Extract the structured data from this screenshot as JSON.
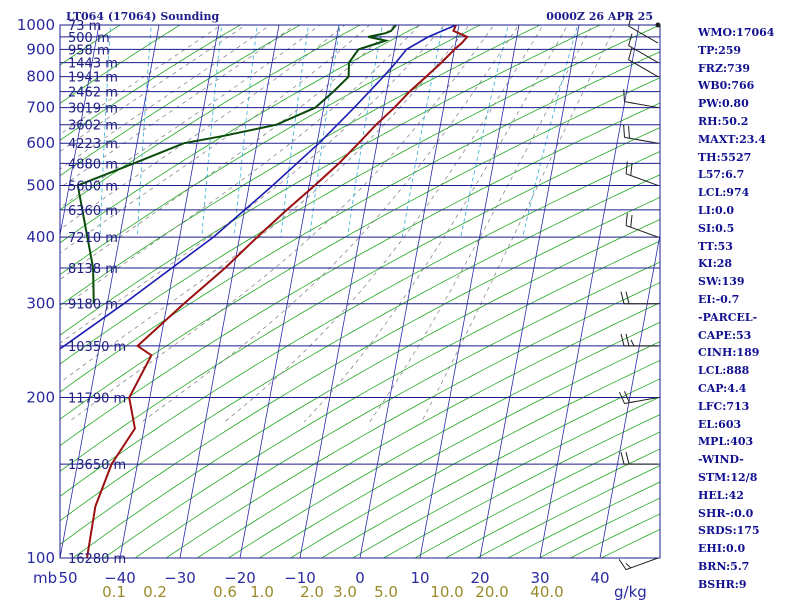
{
  "chart_data": {
    "type": "line",
    "title": "LT064 (17064) Sounding",
    "datetime": "0000Z 26 APR 25",
    "x_unit_label": "mb",
    "mixing_unit_label": "g/kg",
    "xlim": [
      -50,
      50
    ],
    "ylim": [
      1000,
      100
    ],
    "pressure_ticks": [
      {
        "p": 100,
        "label": "100"
      },
      {
        "p": 200,
        "label": "200"
      },
      {
        "p": 300,
        "label": "300"
      },
      {
        "p": 400,
        "label": "400"
      },
      {
        "p": 500,
        "label": "500"
      },
      {
        "p": 600,
        "label": "600"
      },
      {
        "p": 700,
        "label": "700"
      },
      {
        "p": 800,
        "label": "800"
      },
      {
        "p": 900,
        "label": "900"
      },
      {
        "p": 1000,
        "label": "1000"
      }
    ],
    "height_levels": [
      {
        "p": 100,
        "label": "16280 m"
      },
      {
        "p": 150,
        "label": "13650 m"
      },
      {
        "p": 200,
        "label": "11790 m"
      },
      {
        "p": 250,
        "label": "10350 m"
      },
      {
        "p": 300,
        "label": "9180 m"
      },
      {
        "p": 350,
        "label": "8138 m"
      },
      {
        "p": 400,
        "label": "7210 m"
      },
      {
        "p": 450,
        "label": "6360 m"
      },
      {
        "p": 500,
        "label": "5600 m"
      },
      {
        "p": 550,
        "label": "4880 m"
      },
      {
        "p": 600,
        "label": "4223 m"
      },
      {
        "p": 650,
        "label": "3602 m"
      },
      {
        "p": 700,
        "label": "3019 m"
      },
      {
        "p": 750,
        "label": "2462 m"
      },
      {
        "p": 800,
        "label": "1941 m"
      },
      {
        "p": 850,
        "label": "1443 m"
      },
      {
        "p": 900,
        "label": "958 m"
      },
      {
        "p": 950,
        "label": "500 m"
      },
      {
        "p": 1000,
        "label": "73 m"
      }
    ],
    "temperature_ticks": [
      {
        "t": -40,
        "label": "−40"
      },
      {
        "t": -30,
        "label": "−30"
      },
      {
        "t": -20,
        "label": "−20"
      },
      {
        "t": -10,
        "label": "−10"
      },
      {
        "t": 0,
        "label": "0"
      },
      {
        "t": 10,
        "label": "10"
      },
      {
        "t": 20,
        "label": "20"
      },
      {
        "t": 30,
        "label": "30"
      },
      {
        "t": 40,
        "label": "40"
      }
    ],
    "first_temp_label": "50",
    "mixing_ratio_ticks": [
      {
        "w": 0.1,
        "label": "0.1"
      },
      {
        "w": 0.2,
        "label": "0.2"
      },
      {
        "w": 0.6,
        "label": "0.6"
      },
      {
        "w": 1.0,
        "label": "1.0"
      },
      {
        "w": 2.0,
        "label": "2.0"
      },
      {
        "w": 3.0,
        "label": "3.0"
      },
      {
        "w": 5.0,
        "label": "5.0"
      },
      {
        "w": 10.0,
        "label": "10.0"
      },
      {
        "w": 20.0,
        "label": "20.0"
      },
      {
        "w": 40.0,
        "label": "40.0"
      }
    ],
    "temperature": [
      {
        "p": 1000,
        "t": 16.0
      },
      {
        "p": 975,
        "t": 15.4
      },
      {
        "p": 950,
        "t": 17.5
      },
      {
        "p": 925,
        "t": 16.4
      },
      {
        "p": 900,
        "t": 15.0
      },
      {
        "p": 850,
        "t": 12.4
      },
      {
        "p": 800,
        "t": 9.4
      },
      {
        "p": 750,
        "t": 6.2
      },
      {
        "p": 700,
        "t": 3.2
      },
      {
        "p": 650,
        "t": -0.4
      },
      {
        "p": 600,
        "t": -3.9
      },
      {
        "p": 550,
        "t": -7.8
      },
      {
        "p": 500,
        "t": -12.5
      },
      {
        "p": 450,
        "t": -17.9
      },
      {
        "p": 400,
        "t": -23.7
      },
      {
        "p": 350,
        "t": -30.0
      },
      {
        "p": 300,
        "t": -38.0
      },
      {
        "p": 250,
        "t": -47.0
      },
      {
        "p": 240,
        "t": -45.0
      },
      {
        "p": 200,
        "t": -50.0
      },
      {
        "p": 175,
        "t": -50.0
      },
      {
        "p": 150,
        "t": -55.0
      },
      {
        "p": 125,
        "t": -59.0
      },
      {
        "p": 100,
        "t": -62.0
      }
    ],
    "dewpoint": [
      {
        "p": 1000,
        "t": 6.0
      },
      {
        "p": 975,
        "t": 5.0
      },
      {
        "p": 965,
        "t": 4.0
      },
      {
        "p": 950,
        "t": 1.0
      },
      {
        "p": 935,
        "t": 3.8
      },
      {
        "p": 925,
        "t": 2.5
      },
      {
        "p": 900,
        "t": -1.0
      },
      {
        "p": 850,
        "t": -3.0
      },
      {
        "p": 800,
        "t": -3.5
      },
      {
        "p": 750,
        "t": -6.5
      },
      {
        "p": 700,
        "t": -10.0
      },
      {
        "p": 650,
        "t": -17.0
      },
      {
        "p": 620,
        "t": -26.0
      },
      {
        "p": 600,
        "t": -33.0
      },
      {
        "p": 550,
        "t": -42.0
      },
      {
        "p": 500,
        "t": -52.0
      },
      {
        "p": 450,
        "t": -52.0
      },
      {
        "p": 400,
        "t": -52.0
      },
      {
        "p": 350,
        "t": -52.0
      },
      {
        "p": 300,
        "t": -53.0
      }
    ],
    "parcel": [
      {
        "p": 1000,
        "t": 16.0
      },
      {
        "p": 950,
        "t": 11.0
      },
      {
        "p": 900,
        "t": 7.0
      },
      {
        "p": 850,
        "t": 4.8
      },
      {
        "p": 800,
        "t": 2.3
      },
      {
        "p": 700,
        "t": -3.5
      },
      {
        "p": 600,
        "t": -10.5
      },
      {
        "p": 500,
        "t": -19.5
      },
      {
        "p": 400,
        "t": -31.0
      },
      {
        "p": 300,
        "t": -48.0
      },
      {
        "p": 200,
        "t": -73.0
      },
      {
        "p": 150,
        "t": -90.0
      },
      {
        "p": 100,
        "t": -115.0
      }
    ],
    "winds": [
      {
        "p": 1000,
        "dir": 90,
        "kt": 0
      },
      {
        "p": 925,
        "dir": 300,
        "kt": 10
      },
      {
        "p": 850,
        "dir": 300,
        "kt": 10
      },
      {
        "p": 800,
        "dir": 300,
        "kt": 10
      },
      {
        "p": 700,
        "dir": 280,
        "kt": 10
      },
      {
        "p": 600,
        "dir": 280,
        "kt": 20
      },
      {
        "p": 500,
        "dir": 290,
        "kt": 20
      },
      {
        "p": 400,
        "dir": 290,
        "kt": 20
      },
      {
        "p": 300,
        "dir": 270,
        "kt": 20
      },
      {
        "p": 250,
        "dir": 270,
        "kt": 25
      },
      {
        "p": 200,
        "dir": 260,
        "kt": 20
      },
      {
        "p": 150,
        "dir": 270,
        "kt": 20
      },
      {
        "p": 100,
        "dir": 250,
        "kt": 15
      }
    ]
  },
  "indices": [
    "WMO:17064",
    "TP:259",
    "FRZ:739",
    "WB0:766",
    "PW:0.80",
    "RH:50.2",
    "MAXT:23.4",
    "TH:5527",
    "L57:6.7",
    "LCL:974",
    "LI:0.0",
    "SI:0.5",
    "TT:53",
    "KI:28",
    "SW:139",
    "EI:-0.7",
    "-PARCEL-",
    "CAPE:53",
    "CINH:189",
    "LCL:888",
    "CAP:4.4",
    "LFC:713",
    "EL:603",
    "MPL:403",
    "-WIND-",
    "STM:12/8",
    "HEL:42",
    "SHR-:0.0",
    "SRDS:175",
    "EHI:0.0",
    "BRN:5.7",
    "BSHR:9"
  ],
  "colors": {
    "isobar": "#1c1c8c",
    "isotherm": "#2a2aa8",
    "dry_adiabat": "#22a822",
    "moist_adiabat": "#7a7a7a",
    "mixing_ratio": "#33b0d8",
    "temperature": "#9c1010",
    "dewpoint": "#0a4a0a",
    "parcel": "#1c1cb4"
  }
}
